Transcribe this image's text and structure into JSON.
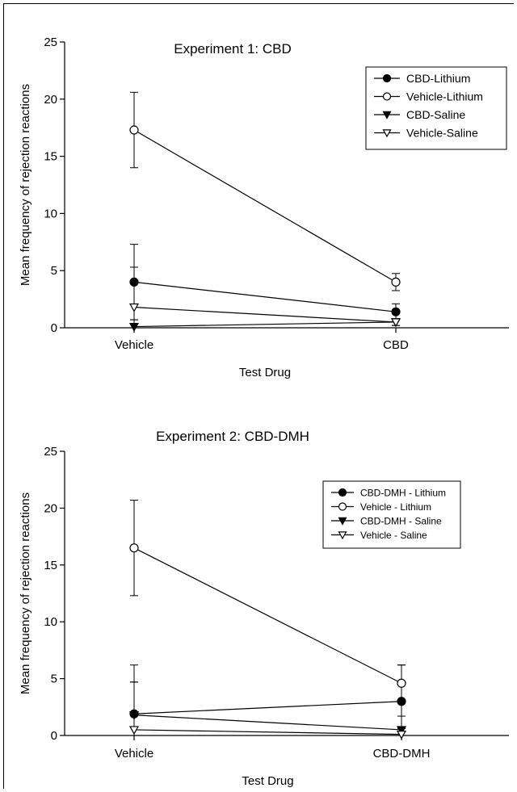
{
  "chart_data": [
    {
      "type": "line",
      "title": "Experiment 1:  CBD",
      "xlabel": "Test Drug",
      "ylabel": "Mean frequency of rejection reactions",
      "categories": [
        "Vehicle",
        "CBD"
      ],
      "ylim": [
        0,
        25
      ],
      "yticks": [
        0,
        5,
        10,
        15,
        20,
        25
      ],
      "legend_position": "top-right",
      "series": [
        {
          "name": "CBD-Lithium",
          "marker": "circle-filled",
          "values": [
            4.0,
            1.4
          ],
          "error": [
            3.3,
            0.7
          ]
        },
        {
          "name": "Vehicle-Lithium",
          "marker": "circle-open",
          "values": [
            17.3,
            4.0
          ],
          "error": [
            3.3,
            0.75
          ]
        },
        {
          "name": "CBD-Saline",
          "marker": "triangle-filled",
          "values": [
            0.1,
            0.5
          ],
          "error": [
            0.6,
            0.3
          ]
        },
        {
          "name": "Vehicle-Saline",
          "marker": "triangle-open",
          "values": [
            1.8,
            0.5
          ],
          "error": [
            3.5,
            0.3
          ]
        }
      ]
    },
    {
      "type": "line",
      "title": "Experiment 2:  CBD-DMH",
      "xlabel": "Test Drug",
      "ylabel": "Mean frequency of rejection reactions",
      "categories": [
        "Vehicle",
        "CBD-DMH"
      ],
      "ylim": [
        0,
        25
      ],
      "yticks": [
        0,
        5,
        10,
        15,
        20,
        25
      ],
      "legend_position": "top-right",
      "series": [
        {
          "name": "CBD-DMH - Lithium",
          "marker": "circle-filled",
          "values": [
            1.9,
            3.0
          ],
          "error": [
            4.3,
            3.2
          ]
        },
        {
          "name": "Vehicle - Lithium",
          "marker": "circle-open",
          "values": [
            16.5,
            4.6
          ],
          "error": [
            4.2,
            1.6
          ]
        },
        {
          "name": "CBD-DMH - Saline",
          "marker": "triangle-filled",
          "values": [
            1.8,
            0.5
          ],
          "error": [
            2.9,
            1.2
          ]
        },
        {
          "name": "Vehicle - Saline",
          "marker": "triangle-open",
          "values": [
            0.5,
            0.1
          ],
          "error": [
            4.2,
            0.5
          ]
        }
      ]
    }
  ]
}
